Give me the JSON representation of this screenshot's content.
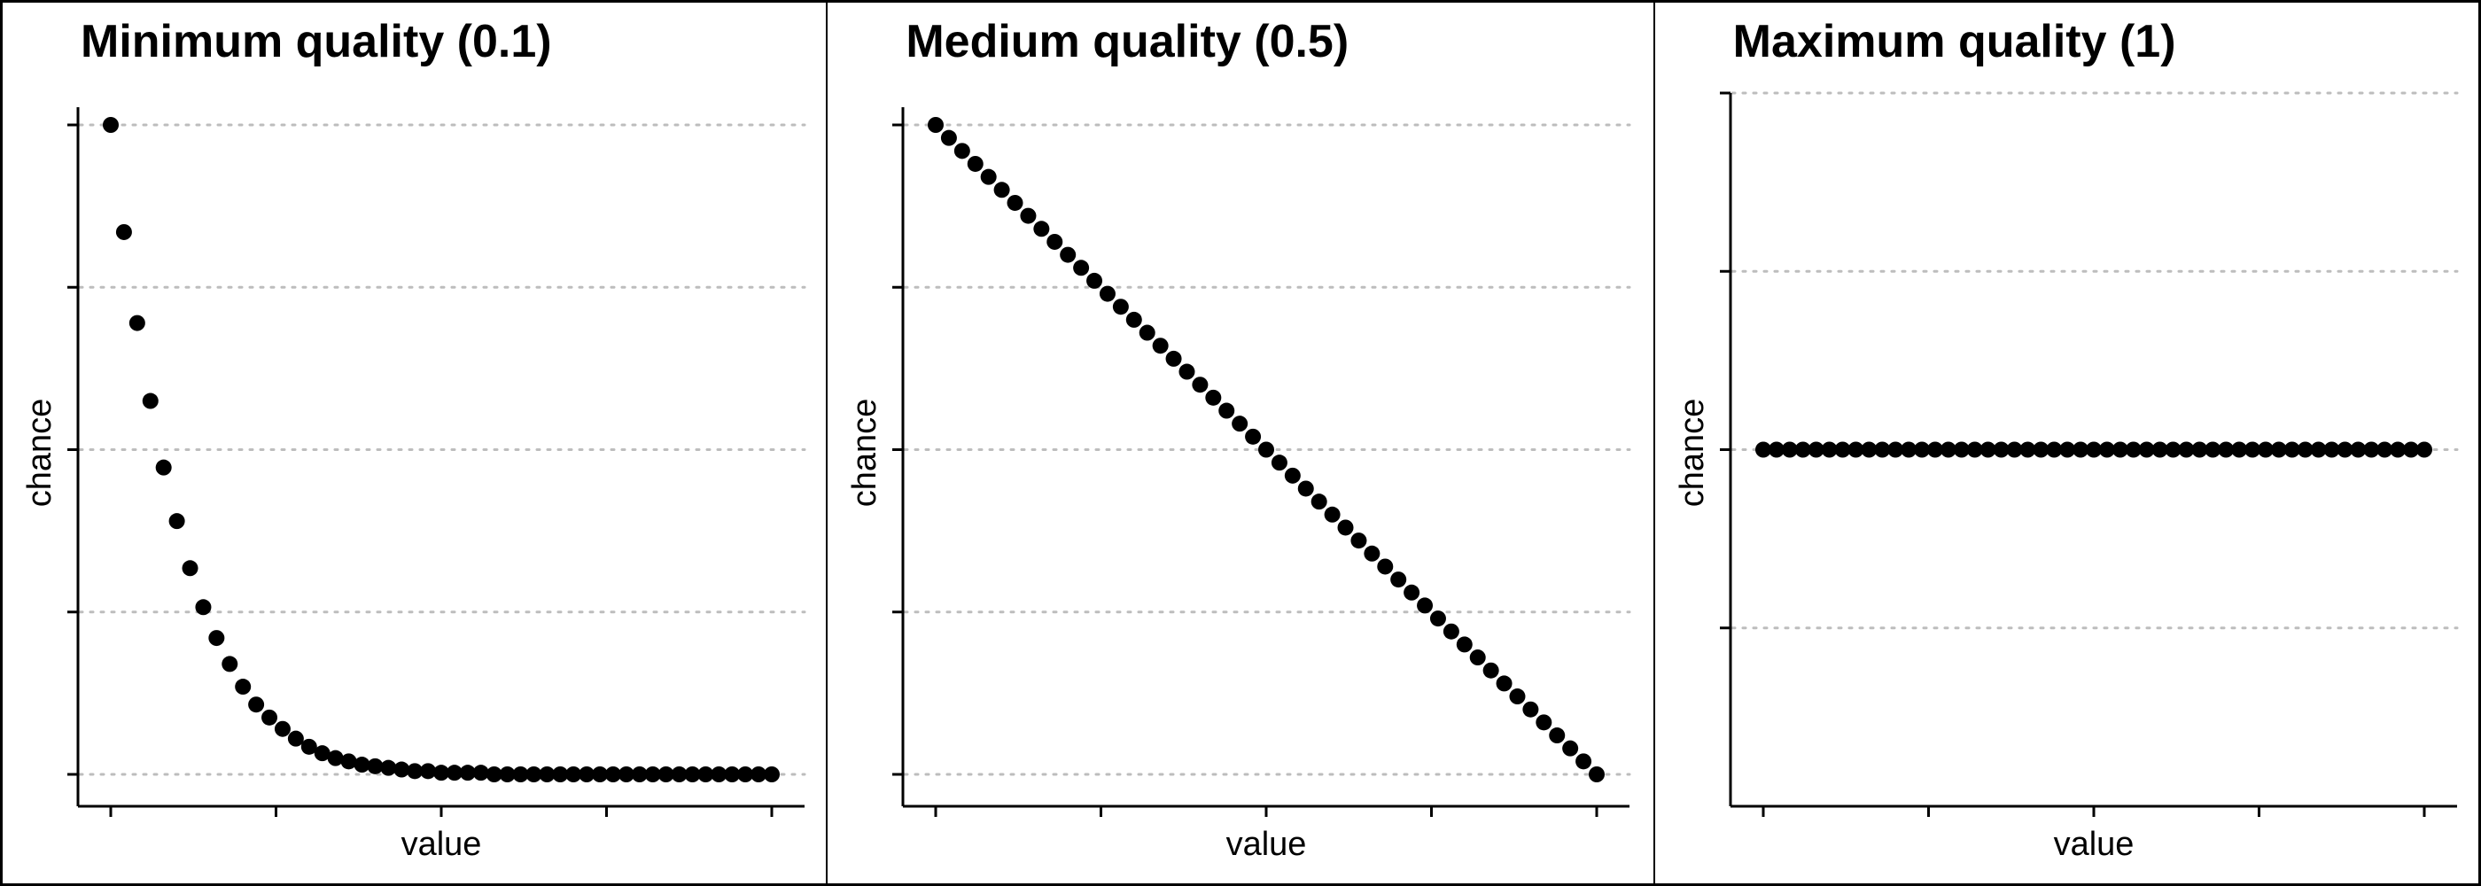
{
  "chart_data": [
    {
      "type": "scatter",
      "title": "Minimum quality (0.1)",
      "xlabel": "value",
      "ylabel": "chance",
      "xlim": [
        0,
        50
      ],
      "ylim": [
        -0.2,
        4
      ],
      "x_ticks": [
        0,
        12.5,
        25,
        37.5,
        50
      ],
      "y_ticks": [
        0,
        1,
        2,
        3,
        4
      ],
      "grid": "horizontal dotted",
      "point_color": "#000000",
      "x": [
        0,
        1,
        2,
        3,
        4,
        5,
        6,
        7,
        8,
        9,
        10,
        11,
        12,
        13,
        14,
        15,
        16,
        17,
        18,
        19,
        20,
        21,
        22,
        23,
        24,
        25,
        26,
        27,
        28,
        29,
        30,
        31,
        32,
        33,
        34,
        35,
        36,
        37,
        38,
        39,
        40,
        41,
        42,
        43,
        44,
        45,
        46,
        47,
        48,
        49,
        50
      ],
      "y": [
        4.0,
        3.34,
        2.78,
        2.3,
        1.89,
        1.56,
        1.27,
        1.03,
        0.84,
        0.68,
        0.54,
        0.43,
        0.35,
        0.28,
        0.22,
        0.17,
        0.13,
        0.1,
        0.08,
        0.06,
        0.05,
        0.04,
        0.03,
        0.02,
        0.02,
        0.01,
        0.01,
        0.01,
        0.01,
        0.0,
        0.0,
        0.0,
        0.0,
        0.0,
        0.0,
        0.0,
        0.0,
        0.0,
        0.0,
        0.0,
        0.0,
        0.0,
        0.0,
        0.0,
        0.0,
        0.0,
        0.0,
        0.0,
        0.0,
        0.0,
        0.0
      ]
    },
    {
      "type": "scatter",
      "title": "Medium quality (0.5)",
      "xlabel": "value",
      "ylabel": "chance",
      "xlim": [
        0,
        50
      ],
      "ylim": [
        -0.2,
        4
      ],
      "x_ticks": [
        0,
        12.5,
        25,
        37.5,
        50
      ],
      "y_ticks": [
        0,
        1,
        2,
        3,
        4
      ],
      "grid": "horizontal dotted",
      "point_color": "#000000",
      "x": [
        0,
        1,
        2,
        3,
        4,
        5,
        6,
        7,
        8,
        9,
        10,
        11,
        12,
        13,
        14,
        15,
        16,
        17,
        18,
        19,
        20,
        21,
        22,
        23,
        24,
        25,
        26,
        27,
        28,
        29,
        30,
        31,
        32,
        33,
        34,
        35,
        36,
        37,
        38,
        39,
        40,
        41,
        42,
        43,
        44,
        45,
        46,
        47,
        48,
        49,
        50
      ],
      "y": [
        4.0,
        3.92,
        3.84,
        3.76,
        3.68,
        3.6,
        3.52,
        3.44,
        3.36,
        3.28,
        3.2,
        3.12,
        3.04,
        2.96,
        2.88,
        2.8,
        2.72,
        2.64,
        2.56,
        2.48,
        2.4,
        2.32,
        2.24,
        2.16,
        2.08,
        2.0,
        1.92,
        1.84,
        1.76,
        1.68,
        1.6,
        1.52,
        1.44,
        1.36,
        1.28,
        1.2,
        1.12,
        1.04,
        0.96,
        0.88,
        0.8,
        0.72,
        0.64,
        0.56,
        0.48,
        0.4,
        0.32,
        0.24,
        0.16,
        0.08,
        0.0
      ]
    },
    {
      "type": "scatter",
      "title": "Maximum quality (1)",
      "xlabel": "value",
      "ylabel": "chance",
      "xlim": [
        0,
        50
      ],
      "ylim": [
        0,
        4
      ],
      "x_ticks": [
        0,
        12.5,
        25,
        37.5,
        50
      ],
      "y_ticks": [
        1,
        2,
        3,
        4
      ],
      "grid": "horizontal dotted",
      "point_color": "#000000",
      "x": [
        0,
        1,
        2,
        3,
        4,
        5,
        6,
        7,
        8,
        9,
        10,
        11,
        12,
        13,
        14,
        15,
        16,
        17,
        18,
        19,
        20,
        21,
        22,
        23,
        24,
        25,
        26,
        27,
        28,
        29,
        30,
        31,
        32,
        33,
        34,
        35,
        36,
        37,
        38,
        39,
        40,
        41,
        42,
        43,
        44,
        45,
        46,
        47,
        48,
        49,
        50
      ],
      "y": [
        2,
        2,
        2,
        2,
        2,
        2,
        2,
        2,
        2,
        2,
        2,
        2,
        2,
        2,
        2,
        2,
        2,
        2,
        2,
        2,
        2,
        2,
        2,
        2,
        2,
        2,
        2,
        2,
        2,
        2,
        2,
        2,
        2,
        2,
        2,
        2,
        2,
        2,
        2,
        2,
        2,
        2,
        2,
        2,
        2,
        2,
        2,
        2,
        2,
        2,
        2
      ]
    }
  ]
}
